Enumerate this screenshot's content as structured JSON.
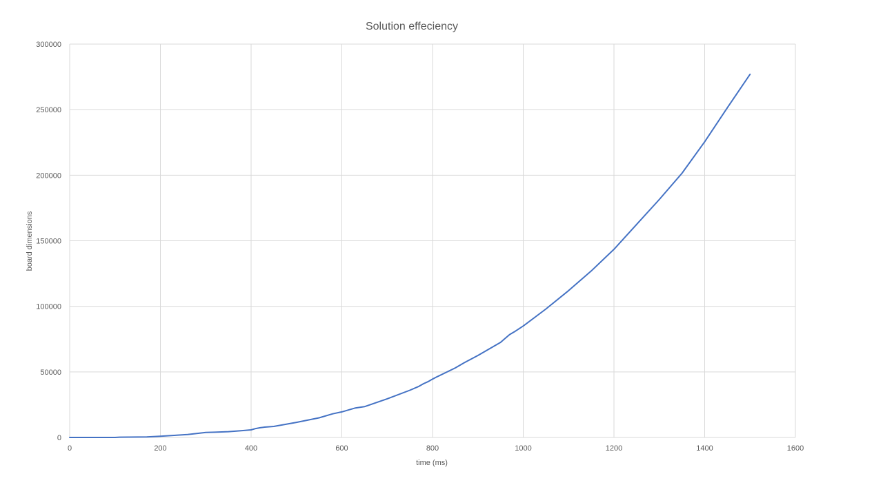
{
  "chart_data": {
    "type": "line",
    "title": "Solution effeciency",
    "xlabel": "time (ms)",
    "ylabel": "board dimensions",
    "xlim": [
      0,
      1600
    ],
    "ylim": [
      0,
      300000
    ],
    "x_ticks": [
      "0",
      "200",
      "400",
      "600",
      "800",
      "1000",
      "1200",
      "1400",
      "1600"
    ],
    "y_ticks": [
      "0",
      "50000",
      "100000",
      "150000",
      "200000",
      "250000",
      "300000"
    ],
    "grid": true,
    "legend": "none",
    "series": [
      {
        "color": "#4472c4",
        "x": [
          0,
          100,
          110,
          150,
          170,
          200,
          230,
          260,
          300,
          320,
          350,
          380,
          400,
          410,
          420,
          430,
          450,
          500,
          550,
          580,
          600,
          620,
          630,
          650,
          700,
          750,
          770,
          780,
          790,
          800,
          810,
          850,
          870,
          900,
          950,
          960,
          970,
          980,
          1000,
          1050,
          1100,
          1150,
          1200,
          1250,
          1300,
          1350,
          1400,
          1450,
          1500
        ],
        "y": [
          0,
          0,
          200,
          300,
          400,
          900,
          1600,
          2200,
          3800,
          4000,
          4400,
          5200,
          5800,
          6800,
          7400,
          7900,
          8400,
          11500,
          15000,
          18000,
          19500,
          21500,
          22500,
          23500,
          29500,
          36000,
          39000,
          41000,
          42500,
          44500,
          46300,
          53000,
          57000,
          62500,
          72500,
          75500,
          78500,
          80500,
          85000,
          98000,
          112000,
          127000,
          143500,
          162500,
          181500,
          201500,
          225500,
          251500,
          277000
        ]
      }
    ]
  }
}
